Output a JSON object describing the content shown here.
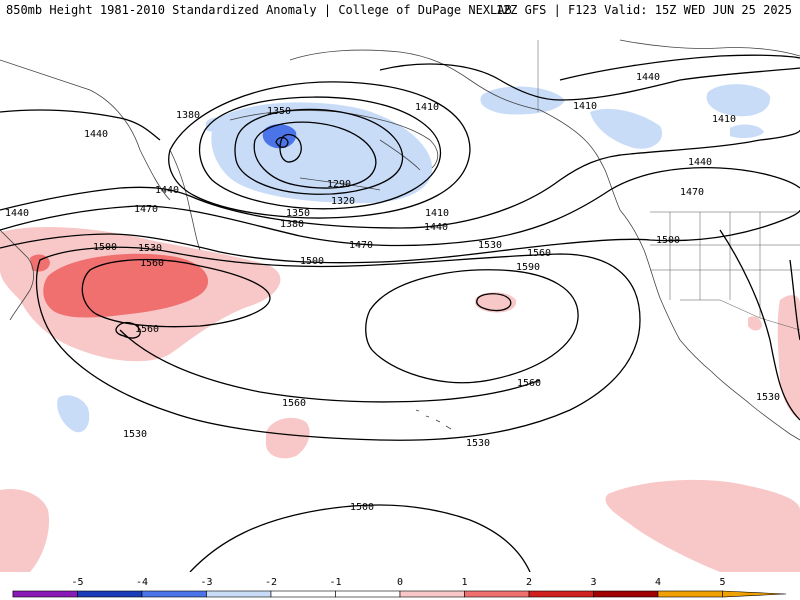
{
  "header": {
    "title_left": "850mb Height 1981-2010 Standardized Anomaly | College of DuPage NEXLAB",
    "title_right": "12Z GFS | F123 Valid: 15Z WED JUN 25 2025"
  },
  "colors": {
    "neg5": "#e080e0",
    "neg4": "#8a1ab8",
    "neg3": "#1a3cb8",
    "neg2": "#4a74e8",
    "neg1": "#c8dcf8",
    "neutral": "#ffffff",
    "pos1": "#f8c8c8",
    "pos2": "#f07070",
    "pos3": "#d02020",
    "pos4": "#a00000",
    "pos5": "#f0a000"
  },
  "colorbar": {
    "ticks": [
      "-5",
      "-4",
      "-3",
      "-2",
      "-1",
      "0",
      "1",
      "2",
      "3",
      "4",
      "5"
    ]
  },
  "contour_labels": [
    {
      "text": "1350",
      "id": "c1350a"
    },
    {
      "text": "1380",
      "id": "c1380a"
    },
    {
      "text": "1440",
      "id": "c1440a"
    },
    {
      "text": "1410",
      "id": "c1410a"
    },
    {
      "text": "1410",
      "id": "c1410b"
    },
    {
      "text": "1440",
      "id": "c1440b"
    },
    {
      "text": "1410",
      "id": "c1410c"
    },
    {
      "text": "1440",
      "id": "c1440c"
    },
    {
      "text": "1470",
      "id": "c1470a"
    },
    {
      "text": "1440",
      "id": "c1440d"
    },
    {
      "text": "1440",
      "id": "c1440e"
    },
    {
      "text": "1470",
      "id": "c1470b"
    },
    {
      "text": "1290",
      "id": "c1290"
    },
    {
      "text": "1320",
      "id": "c1320"
    },
    {
      "text": "1350",
      "id": "c1350b"
    },
    {
      "text": "1380",
      "id": "c1380b"
    },
    {
      "text": "1410",
      "id": "c1410d"
    },
    {
      "text": "1440",
      "id": "c1440f"
    },
    {
      "text": "1470",
      "id": "c1470c"
    },
    {
      "text": "1500",
      "id": "c1500a"
    },
    {
      "text": "1530",
      "id": "c1530a"
    },
    {
      "text": "1560",
      "id": "c1560a"
    },
    {
      "text": "1500",
      "id": "c1500b"
    },
    {
      "text": "1530",
      "id": "c1530b"
    },
    {
      "text": "1560",
      "id": "c1560b"
    },
    {
      "text": "1590",
      "id": "c1590"
    },
    {
      "text": "1500",
      "id": "c1500c"
    },
    {
      "text": "1560",
      "id": "c1560c"
    },
    {
      "text": "1560",
      "id": "c1560d"
    },
    {
      "text": "1560",
      "id": "c1560e"
    },
    {
      "text": "1530",
      "id": "c1530c"
    },
    {
      "text": "1530",
      "id": "c1530d"
    },
    {
      "text": "1530",
      "id": "c1530e"
    },
    {
      "text": "1500",
      "id": "c1500d"
    }
  ]
}
